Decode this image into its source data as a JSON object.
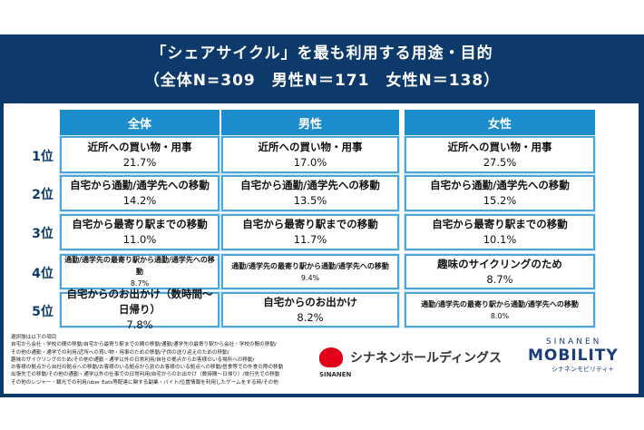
{
  "title": {
    "line1": "「シェアサイクル」を最も利用する用途・目的",
    "line2": "（全体N=309　男性N＝171　女性N＝138）"
  },
  "headers": [
    "全体",
    "男性",
    "女性"
  ],
  "ranks": [
    "1位",
    "2位",
    "3位",
    "4位",
    "5位"
  ],
  "rows": [
    [
      {
        "label": "近所への買い物・用事",
        "value": "21.7%"
      },
      {
        "label": "近所への買い物・用事",
        "value": "17.0%"
      },
      {
        "label": "近所への買い物・用事",
        "value": "27.5%"
      }
    ],
    [
      {
        "label": "自宅から通勤/通学先への移動",
        "value": "14.2%"
      },
      {
        "label": "自宅から通勤/通学先への移動",
        "value": "13.5%"
      },
      {
        "label": "自宅から通勤/通学先への移動",
        "value": "15.2%"
      }
    ],
    [
      {
        "label": "自宅から最寄り駅までの移動",
        "value": "11.0%"
      },
      {
        "label": "自宅から最寄り駅までの移動",
        "value": "11.7%"
      },
      {
        "label": "自宅から最寄り駅までの移動",
        "value": "10.1%"
      }
    ],
    [
      {
        "label": "通勤/通学先の最寄り駅から通勤/通学先への移動",
        "value": "8.7%"
      },
      {
        "label": "通勤/通学先の最寄り駅から通勤/通学先への移動",
        "value": "9.4%"
      },
      {
        "label": "趣味のサイクリングのため",
        "value": "8.7%"
      }
    ],
    [
      {
        "label": "自宅からのお出かけ（数時間～日帰り）",
        "value": "7.8%"
      },
      {
        "label": "自宅からのお出かけ",
        "value": "8.2%"
      },
      {
        "label": "通勤/通学先の最寄り駅から通勤/通学先への移動",
        "value": "8.0%"
      }
    ]
  ],
  "notes": [
    "選択肢は以下の項目",
    "自宅から会社・学校の間の移動/自宅から最寄り駅までの間の移動/通勤/通学先の最寄り駅から会社・学校の間の移動/",
    "その他の通勤・通学での利用/近所への買い物・用事のための移動/子供の送り迎えのための移動/",
    "趣味のサイクリングのため/その他の通勤・通学以外の日常利用/自社の拠点からお客様のいる場所への移動/",
    "お客様の拠点から自社の拠点への移動/お客様のいる拠点から別のお客様のいる拠点への移動/昼食等での外食の際の移動",
    "出張先での移動/その他の通勤・通学以外の仕事での日常利用/自宅からのお出かけ（数時間〜日帰り）/旅行先での移動",
    "その他のレジャー・観光での利用/uber Eats等配達に関する副業・バイト/位置情報を利用したゲームをする時/その他"
  ],
  "logos": {
    "sinanen_jp": "シナネンホールディングス",
    "sinanen_en": "SINANEN",
    "mobility_top": "SINANEN",
    "mobility_main": "MOBILITY",
    "mobility_jp": "シナネンモビリティ+"
  }
}
